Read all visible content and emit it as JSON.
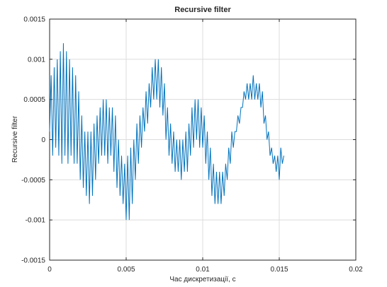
{
  "chart_data": {
    "type": "line",
    "title": "Recursive filter",
    "xlabel": "Час дискретизації, с",
    "ylabel": "Recursive filter",
    "x": [
      0,
      0.0001,
      0.0002,
      0.0003,
      0.0004,
      0.0005,
      0.0006,
      0.0007,
      0.0008,
      0.0009,
      0.001,
      0.0011,
      0.0012,
      0.0013,
      0.0014,
      0.0015,
      0.0016,
      0.0017,
      0.0018,
      0.0019,
      0.002,
      0.0021,
      0.0022,
      0.0023,
      0.0024,
      0.0025,
      0.0026,
      0.0027,
      0.0028,
      0.0029,
      0.003,
      0.0031,
      0.0032,
      0.0033,
      0.0034,
      0.0035,
      0.0036,
      0.0037,
      0.0038,
      0.0039,
      0.004,
      0.0041,
      0.0042,
      0.0043,
      0.0044,
      0.0045,
      0.0046,
      0.0047,
      0.0048,
      0.0049,
      0.005,
      0.0051,
      0.0052,
      0.0053,
      0.0054,
      0.0055,
      0.0056,
      0.0057,
      0.0058,
      0.0059,
      0.006,
      0.0061,
      0.0062,
      0.0063,
      0.0064,
      0.0065,
      0.0066,
      0.0067,
      0.0068,
      0.0069,
      0.007,
      0.0071,
      0.0072,
      0.0073,
      0.0074,
      0.0075,
      0.0076,
      0.0077,
      0.0078,
      0.0079,
      0.008,
      0.0081,
      0.0082,
      0.0083,
      0.0084,
      0.0085,
      0.0086,
      0.0087,
      0.0088,
      0.0089,
      0.009,
      0.0091,
      0.0092,
      0.0093,
      0.0094,
      0.0095,
      0.0096,
      0.0097,
      0.0098,
      0.0099,
      0.01,
      0.0101,
      0.0102,
      0.0103,
      0.0104,
      0.0105,
      0.0106,
      0.0107,
      0.0108,
      0.0109,
      0.011,
      0.0111,
      0.0112,
      0.0113,
      0.0114,
      0.0115,
      0.0116,
      0.0117,
      0.0118,
      0.0119,
      0.012,
      0.0121,
      0.0122,
      0.0123,
      0.0124,
      0.0125,
      0.0126,
      0.0127,
      0.0128,
      0.0129,
      0.013,
      0.0131,
      0.0132,
      0.0133,
      0.0134,
      0.0135,
      0.0136,
      0.0137,
      0.0138,
      0.0139,
      0.014,
      0.0141,
      0.0142,
      0.0143,
      0.0144,
      0.0145,
      0.0146,
      0.0147,
      0.0148,
      0.0149,
      0.015,
      0.0151,
      0.0152,
      0.0153
    ],
    "series": [
      {
        "name": "Recursive filter",
        "color": "#0072bd",
        "values": [
          0.0001,
          0.0008,
          -0.0002,
          0.0009,
          -0.0001,
          0.001,
          -0.0002,
          0.0011,
          -0.0003,
          0.0012,
          -0.0002,
          0.0011,
          -0.0003,
          0.001,
          -0.0002,
          0.0009,
          -0.0003,
          0.0008,
          -0.0003,
          0.0006,
          -0.0005,
          0.0003,
          -0.0006,
          0.0001,
          -0.0007,
          0.0001,
          -0.0008,
          0.0001,
          -0.0007,
          0.0002,
          -0.0005,
          0.0003,
          -0.0003,
          0.0004,
          -0.0002,
          0.0005,
          -0.0002,
          0.0005,
          -0.0003,
          0.0004,
          -0.0002,
          0.0004,
          -0.0004,
          0.0003,
          -0.0006,
          0,
          -0.0007,
          -0.0002,
          -0.0008,
          -0.0003,
          -0.001,
          -0.0002,
          -0.001,
          -0.0001,
          -0.0008,
          0,
          -0.0005,
          0.0002,
          -0.0003,
          0.0003,
          -0.0001,
          0.0004,
          0.0001,
          0.0006,
          0.0002,
          0.0007,
          0.0004,
          0.0009,
          0.0005,
          0.001,
          0.0005,
          0.001,
          0.0004,
          0.0009,
          0.0003,
          0.0007,
          0,
          0.0004,
          -0.0002,
          0.0002,
          -0.0003,
          0.0001,
          -0.0004,
          0,
          -0.0004,
          0,
          -0.0005,
          0,
          -0.0004,
          0.0001,
          -0.0004,
          0.0002,
          -0.0002,
          0.0004,
          -0.0001,
          0.0005,
          0,
          0.0005,
          -0.0001,
          0.0004,
          -0.0001,
          0.0003,
          -0.0003,
          0.0001,
          -0.0005,
          -0.0001,
          -0.0007,
          -0.0003,
          -0.0008,
          -0.0004,
          -0.0008,
          -0.0004,
          -0.0008,
          -0.0004,
          -0.0007,
          -0.0003,
          -0.0005,
          -0.0001,
          -0.0003,
          0.0001,
          -0.0001,
          0.0001,
          0.0001,
          0.0003,
          0.0002,
          0.0004,
          0.0004,
          0.0006,
          0.0005,
          0.0007,
          0.0005,
          0.0007,
          0.0005,
          0.0008,
          0.0005,
          0.0007,
          0.0005,
          0.0007,
          0.0004,
          0.0006,
          0.0002,
          0.0003,
          0,
          0.0001,
          -0.0002,
          -0.0001,
          -0.0003,
          -0.0002,
          -0.0004,
          -0.0002,
          -0.0005,
          -0.0001,
          -0.0003,
          -0.0002
        ]
      }
    ],
    "xlim": [
      0,
      0.02
    ],
    "xticks": [
      0,
      0.005,
      0.01,
      0.015,
      0.02
    ],
    "ylim": [
      -0.0015,
      0.0015
    ],
    "yticks": [
      -0.0015,
      -0.001,
      -0.0005,
      0,
      0.0005,
      0.001,
      0.0015
    ],
    "grid": true
  }
}
